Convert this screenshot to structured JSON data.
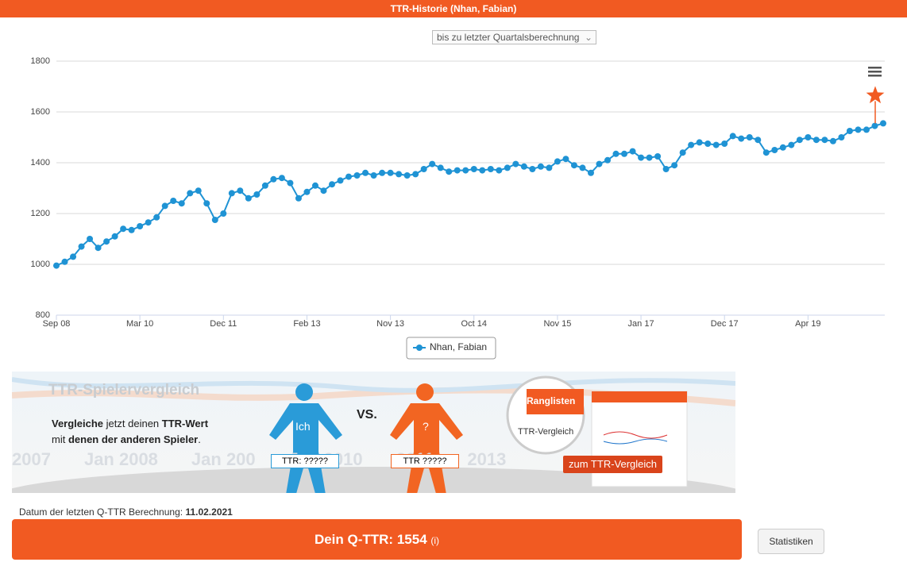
{
  "header": {
    "title": "TTR-Historie (Nhan, Fabian)"
  },
  "dropdown": {
    "label": "bis zu letzter Quartalsberechnung"
  },
  "chart_data": {
    "type": "line",
    "categories": [
      "Sep 08",
      null,
      null,
      null,
      null,
      null,
      null,
      null,
      null,
      null,
      "Mar 10",
      null,
      null,
      null,
      null,
      null,
      null,
      null,
      null,
      null,
      "Dec 11",
      null,
      null,
      null,
      null,
      null,
      null,
      null,
      null,
      null,
      "Feb 13",
      null,
      null,
      null,
      null,
      null,
      null,
      null,
      null,
      null,
      "Nov 13",
      null,
      null,
      null,
      null,
      null,
      null,
      null,
      null,
      null,
      "Oct 14",
      null,
      null,
      null,
      null,
      null,
      null,
      null,
      null,
      null,
      "Nov 15",
      null,
      null,
      null,
      null,
      null,
      null,
      null,
      null,
      null,
      "Jan 17",
      null,
      null,
      null,
      null,
      null,
      null,
      null,
      null,
      null,
      "Dec 17",
      null,
      null,
      null,
      null,
      null,
      null,
      null,
      null,
      null,
      "Apr 19",
      null,
      null,
      null,
      null,
      null,
      null,
      null,
      null,
      null
    ],
    "series": [
      {
        "name": "Nhan, Fabian",
        "color": "#1f93d4",
        "values": [
          995,
          1010,
          1030,
          1070,
          1100,
          1065,
          1090,
          1110,
          1140,
          1135,
          1150,
          1165,
          1185,
          1230,
          1250,
          1240,
          1280,
          1290,
          1240,
          1175,
          1200,
          1280,
          1290,
          1260,
          1275,
          1310,
          1335,
          1340,
          1320,
          1260,
          1285,
          1310,
          1290,
          1315,
          1330,
          1345,
          1350,
          1360,
          1350,
          1360,
          1360,
          1355,
          1350,
          1355,
          1375,
          1395,
          1380,
          1365,
          1370,
          1370,
          1375,
          1370,
          1375,
          1370,
          1380,
          1395,
          1385,
          1375,
          1385,
          1380,
          1405,
          1415,
          1390,
          1380,
          1360,
          1395,
          1410,
          1435,
          1435,
          1445,
          1420,
          1420,
          1425,
          1375,
          1390,
          1440,
          1470,
          1480,
          1475,
          1470,
          1475,
          1505,
          1495,
          1500,
          1490,
          1440,
          1450,
          1460,
          1470,
          1490,
          1500,
          1490,
          1490,
          1485,
          1500,
          1525,
          1530,
          1530,
          1545,
          1555
        ]
      }
    ],
    "ylim": [
      800,
      1800
    ],
    "yticks": [
      800,
      1000,
      1200,
      1400,
      1600,
      1800
    ],
    "grid": true
  },
  "banner": {
    "title": "TTR-Spielervergleich",
    "text_parts": [
      "Vergleiche",
      " jetzt deinen ",
      "TTR-Wert",
      "mit ",
      "denen der anderen Spieler",
      "."
    ],
    "me": "Ich",
    "vs": "VS.",
    "other": "?",
    "me_ttr": "TTR: ?????",
    "other_ttr": "TTR ?????",
    "tab": "Ranglisten",
    "compare": "TTR-Vergleich",
    "button": "zum TTR-Vergleich",
    "bg_years": [
      "2007",
      "Jan 2008",
      "Jan 200",
      "Jan 2010",
      "2011",
      "2013"
    ]
  },
  "footer": {
    "date_label": "Datum der letzten Q-TTR Berechnung:",
    "date": "11.02.2021",
    "qttr_label": "Dein Q-TTR:",
    "qttr": "1554",
    "info": "(i)",
    "stats": "Statistiken"
  }
}
